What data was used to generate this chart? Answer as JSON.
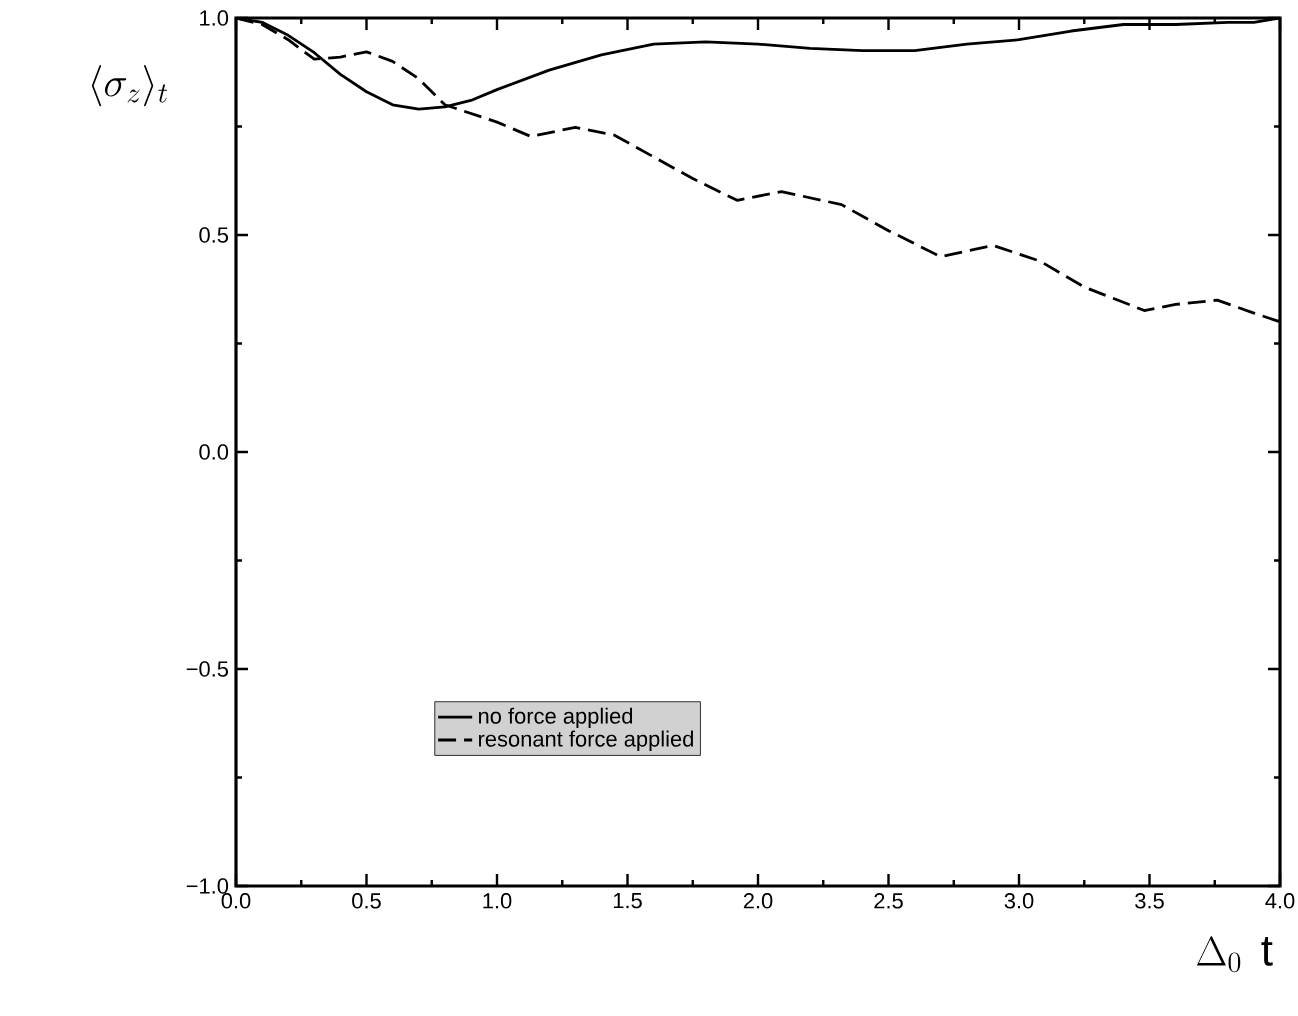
{
  "chart_data": {
    "type": "line",
    "xlabel": "\\Delta_0 \\;\\, \\mathrm{t}",
    "ylabel": "\\langle \\sigma_z \\rangle_t",
    "xlim": [
      0,
      4
    ],
    "ylim": [
      -1,
      1
    ],
    "xticks": [
      {
        "value": 0,
        "label": "0.0"
      },
      {
        "value": 0.5,
        "label": "0.5"
      },
      {
        "value": 1,
        "label": "1.0"
      },
      {
        "value": 1.5,
        "label": "1.5"
      },
      {
        "value": 2,
        "label": "2.0"
      },
      {
        "value": 2.5,
        "label": "2.5"
      },
      {
        "value": 3,
        "label": "3.0"
      },
      {
        "value": 3.5,
        "label": "3.5"
      },
      {
        "value": 4,
        "label": "4.0"
      }
    ],
    "yticks": [
      {
        "value": -1,
        "label": "−1.0"
      },
      {
        "value": -0.5,
        "label": "−0.5"
      },
      {
        "value": 0,
        "label": "0.0"
      },
      {
        "value": 0.5,
        "label": "0.5"
      },
      {
        "value": 1,
        "label": "1.0"
      }
    ],
    "grid": false,
    "legend": "bottom",
    "marker": "none",
    "series": [
      {
        "name": "no force applied",
        "color": "#000000",
        "line_style": "solid",
        "x": [
          0,
          0.1,
          0.2,
          0.3,
          0.4,
          0.5,
          0.6,
          0.7,
          0.8,
          0.9,
          1.0,
          1.2,
          1.4,
          1.6,
          1.8,
          2.0,
          2.2,
          2.4,
          2.6,
          2.8,
          3.0,
          3.2,
          3.4,
          3.6,
          3.8,
          3.9,
          4.0
        ],
        "values": [
          1.0,
          0.99,
          0.96,
          0.92,
          0.87,
          0.83,
          0.8,
          0.79,
          0.795,
          0.81,
          0.835,
          0.88,
          0.915,
          0.94,
          0.945,
          0.94,
          0.93,
          0.925,
          0.925,
          0.94,
          0.95,
          0.97,
          0.985,
          0.985,
          0.99,
          0.99,
          1.0
        ]
      },
      {
        "name": "resonant force applied",
        "color": "#000000",
        "line_style": "dashed",
        "x": [
          0,
          0.1,
          0.2,
          0.3,
          0.4,
          0.5,
          0.6,
          0.7,
          0.8,
          1.0,
          1.13,
          1.3,
          1.45,
          1.6,
          1.75,
          1.92,
          2.09,
          2.32,
          2.5,
          2.7,
          2.9,
          3.08,
          3.25,
          3.48,
          3.6,
          3.76,
          3.9,
          4.0
        ],
        "values": [
          1.0,
          0.985,
          0.95,
          0.905,
          0.91,
          0.922,
          0.9,
          0.86,
          0.8,
          0.76,
          0.727,
          0.748,
          0.73,
          0.68,
          0.63,
          0.58,
          0.6,
          0.57,
          0.51,
          0.45,
          0.476,
          0.44,
          0.38,
          0.326,
          0.34,
          0.35,
          0.32,
          0.3
        ]
      }
    ]
  }
}
